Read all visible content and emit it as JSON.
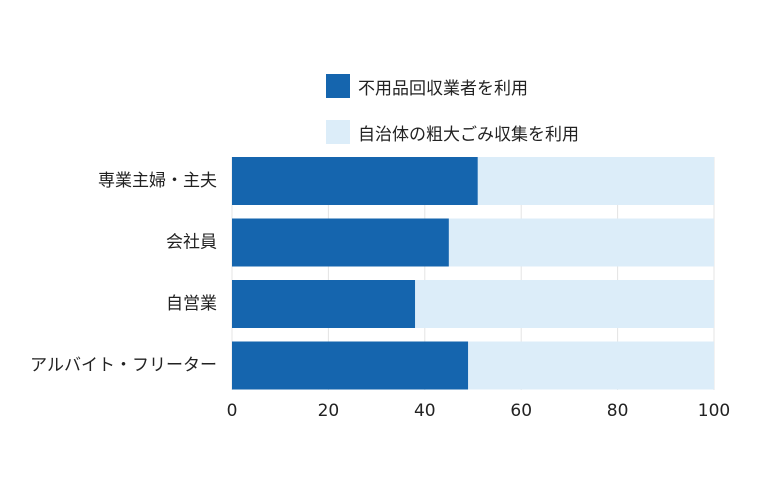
{
  "chart_data": {
    "type": "bar",
    "orientation": "horizontal",
    "stacked": true,
    "categories": [
      "専業主婦・主夫",
      "会社員",
      "自営業",
      "アルバイト・フリーター"
    ],
    "series": [
      {
        "name": "不用品回収業者を利用",
        "color": "#1565ae",
        "values": [
          51,
          45,
          38,
          49
        ]
      },
      {
        "name": "自治体の粗大ごみ収集を利用",
        "color": "#dcedf9",
        "values": [
          49,
          55,
          62,
          51
        ]
      }
    ],
    "xlim": [
      0,
      100
    ],
    "xticks": [
      "0",
      "20",
      "40",
      "60",
      "80",
      "100"
    ],
    "grid": true,
    "legend_position": "top"
  }
}
